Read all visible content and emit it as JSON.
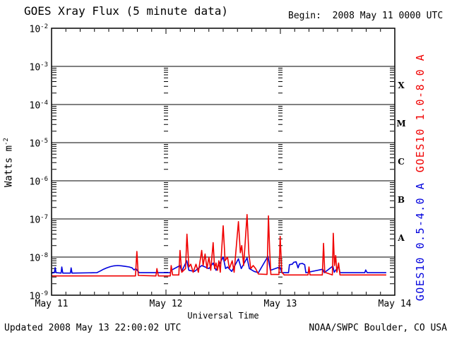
{
  "header": {
    "title": "GOES Xray Flux (5 minute data)",
    "begin_label": "Begin:  2008 May 11 0000 UTC"
  },
  "footer": {
    "updated": "Updated 2008 May 13 22:00:02 UTC",
    "credit": "NOAA/SWPC Boulder, CO USA"
  },
  "chart_data": {
    "type": "line",
    "title": "GOES Xray Flux (5 minute data)",
    "xlabel": "Universal Time",
    "ylabel_base": "Watts m",
    "ylabel_exp": "-2",
    "x_ticks": [
      "May 11",
      "May 12",
      "May 13",
      "May 14"
    ],
    "x_range_hours": [
      0,
      72
    ],
    "x_minor_tick_hours": 3,
    "y_log_range": [
      -9,
      -2
    ],
    "y_tick_exponents": [
      -2,
      -3,
      -4,
      -5,
      -6,
      -7,
      -8,
      -9
    ],
    "grid": "solid horizontal lines at each decade; log minor ticks inside both y axes; dashed day-boundary columns at 24h and 48h",
    "legend_position": "right edge, rotated",
    "day_divider_hours": [
      24,
      48
    ],
    "flare_classes": [
      {
        "letter": "X",
        "log_center": -3.5
      },
      {
        "letter": "M",
        "log_center": -4.5
      },
      {
        "letter": "C",
        "log_center": -5.5
      },
      {
        "letter": "B",
        "log_center": -6.5
      },
      {
        "letter": "A",
        "log_center": -7.5
      }
    ],
    "colors": {
      "long_band": "#f00000",
      "short_band": "#0000dd",
      "axis": "#000000",
      "background": "#ffffff"
    },
    "series": [
      {
        "name": "GOES10 1.0-8.0 A",
        "color": "#f00000",
        "points": [
          [
            0,
            3.2e-09
          ],
          [
            17.6,
            3.2e-09
          ],
          [
            17.9,
            1.4e-08
          ],
          [
            18.2,
            3.3e-09
          ],
          [
            21.9,
            3.2e-09
          ],
          [
            22.1,
            5e-09
          ],
          [
            22.4,
            3.2e-09
          ],
          [
            24.9,
            3.2e-09
          ],
          [
            25.1,
            6e-09
          ],
          [
            25.4,
            3.4e-09
          ],
          [
            26.7,
            3.4e-09
          ],
          [
            26.95,
            1.5e-08
          ],
          [
            27.3,
            4e-09
          ],
          [
            28.1,
            5e-09
          ],
          [
            28.4,
            4e-08
          ],
          [
            28.8,
            5.5e-09
          ],
          [
            29.2,
            6.5e-09
          ],
          [
            29.7,
            4e-09
          ],
          [
            30.3,
            6.5e-09
          ],
          [
            30.8,
            4e-09
          ],
          [
            31.5,
            1.5e-08
          ],
          [
            31.8,
            6e-09
          ],
          [
            32.2,
            1.2e-08
          ],
          [
            32.6,
            5e-09
          ],
          [
            33.0,
            1e-08
          ],
          [
            33.4,
            4.5e-09
          ],
          [
            33.9,
            2.4e-08
          ],
          [
            34.2,
            5e-09
          ],
          [
            34.5,
            7e-09
          ],
          [
            34.8,
            4.5e-09
          ],
          [
            35.1,
            8e-09
          ],
          [
            35.4,
            4e-09
          ],
          [
            36.0,
            6.6e-08
          ],
          [
            36.4,
            8e-09
          ],
          [
            36.9,
            1e-08
          ],
          [
            37.3,
            5e-09
          ],
          [
            37.9,
            8e-09
          ],
          [
            38.3,
            4e-09
          ],
          [
            39.2,
            8.5e-08
          ],
          [
            39.6,
            1.3e-08
          ],
          [
            39.9,
            2e-08
          ],
          [
            40.3,
            6e-09
          ],
          [
            41.0,
            1.3e-07
          ],
          [
            41.4,
            1.2e-08
          ],
          [
            41.8,
            5e-09
          ],
          [
            42.3,
            6e-09
          ],
          [
            42.8,
            5e-09
          ],
          [
            43.4,
            3.6e-09
          ],
          [
            45.2,
            3.5e-09
          ],
          [
            45.5,
            1.2e-07
          ],
          [
            45.75,
            1.5e-08
          ],
          [
            46.0,
            3.5e-09
          ],
          [
            47.7,
            3.5e-09
          ],
          [
            47.95,
            3.5e-08
          ],
          [
            48.3,
            4e-09
          ],
          [
            48.8,
            3.4e-09
          ],
          [
            53.8,
            3.4e-09
          ],
          [
            54.0,
            5.5e-09
          ],
          [
            54.2,
            3.4e-09
          ],
          [
            56.8,
            3.4e-09
          ],
          [
            57.05,
            2.3e-08
          ],
          [
            57.3,
            4e-09
          ],
          [
            58.9,
            3.4e-09
          ],
          [
            59.1,
            4.2e-08
          ],
          [
            59.35,
            6e-09
          ],
          [
            59.6,
            1.1e-08
          ],
          [
            59.85,
            4e-09
          ],
          [
            60.2,
            7e-09
          ],
          [
            60.5,
            3.4e-09
          ],
          [
            70.2,
            3.4e-09
          ]
        ]
      },
      {
        "name": "GOES10 0.5-4.0 A",
        "color": "#0000dd",
        "points": [
          [
            0,
            3.8e-09
          ],
          [
            0.6,
            3.9e-09
          ],
          [
            0.75,
            5.3e-09
          ],
          [
            0.95,
            3.9e-09
          ],
          [
            2.0,
            3.8e-09
          ],
          [
            2.15,
            5.5e-09
          ],
          [
            2.35,
            3.8e-09
          ],
          [
            3.95,
            3.8e-09
          ],
          [
            4.1,
            5.2e-09
          ],
          [
            4.3,
            3.8e-09
          ],
          [
            9.5,
            3.9e-09
          ],
          [
            10.2,
            4.3e-09
          ],
          [
            10.9,
            4.8e-09
          ],
          [
            11.6,
            5.2e-09
          ],
          [
            12.3,
            5.6e-09
          ],
          [
            13.1,
            5.9e-09
          ],
          [
            13.9,
            6e-09
          ],
          [
            14.7,
            5.9e-09
          ],
          [
            15.5,
            5.7e-09
          ],
          [
            16.3,
            5.5e-09
          ],
          [
            16.9,
            5.2e-09
          ],
          [
            17.3,
            4.6e-09
          ],
          [
            17.7,
            5e-09
          ],
          [
            18.0,
            4.4e-09
          ],
          [
            18.4,
            3.9e-09
          ],
          [
            24.9,
            3.9e-09
          ],
          [
            25.1,
            4.5e-09
          ],
          [
            26.95,
            6e-09
          ],
          [
            27.3,
            4.2e-09
          ],
          [
            28.35,
            8e-09
          ],
          [
            28.8,
            4.5e-09
          ],
          [
            30.0,
            4.2e-09
          ],
          [
            31.5,
            6e-09
          ],
          [
            32.2,
            5.5e-09
          ],
          [
            33.0,
            5e-09
          ],
          [
            33.9,
            7e-09
          ],
          [
            34.5,
            4.5e-09
          ],
          [
            36.0,
            1e-08
          ],
          [
            36.5,
            5e-09
          ],
          [
            36.9,
            5.5e-09
          ],
          [
            37.8,
            4.2e-09
          ],
          [
            39.2,
            9e-09
          ],
          [
            39.8,
            5e-09
          ],
          [
            41.0,
            9.5e-09
          ],
          [
            41.5,
            5e-09
          ],
          [
            42.5,
            4.2e-09
          ],
          [
            43.4,
            3.9e-09
          ],
          [
            45.4,
            1.05e-08
          ],
          [
            45.9,
            4.5e-09
          ],
          [
            47.9,
            5.5e-09
          ],
          [
            48.3,
            3.9e-09
          ],
          [
            49.7,
            3.9e-09
          ],
          [
            49.9,
            6.3e-09
          ],
          [
            50.5,
            6.5e-09
          ],
          [
            50.8,
            7.3e-09
          ],
          [
            51.3,
            7.5e-09
          ],
          [
            51.7,
            5.2e-09
          ],
          [
            52.0,
            6.6e-09
          ],
          [
            52.6,
            6.8e-09
          ],
          [
            53.1,
            6.3e-09
          ],
          [
            53.35,
            3.9e-09
          ],
          [
            56.9,
            4.8e-09
          ],
          [
            57.2,
            3.9e-09
          ],
          [
            59.0,
            5.8e-09
          ],
          [
            59.3,
            4e-09
          ],
          [
            60.2,
            5.8e-09
          ],
          [
            60.5,
            3.9e-09
          ],
          [
            65.7,
            3.9e-09
          ],
          [
            65.9,
            4.6e-09
          ],
          [
            66.2,
            3.9e-09
          ],
          [
            70.2,
            3.9e-09
          ]
        ]
      }
    ]
  }
}
